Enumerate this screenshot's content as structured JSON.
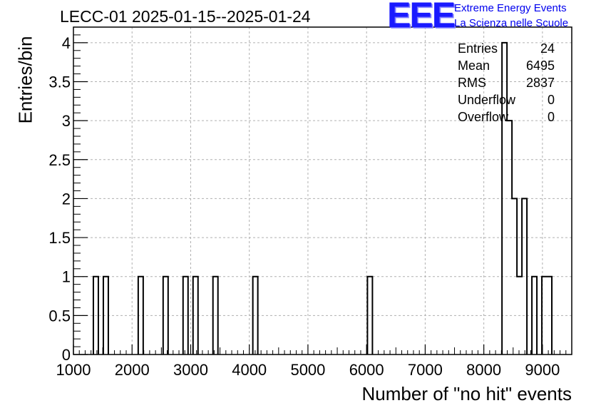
{
  "header": {
    "title": "LECC-01 2025-01-15--2025-01-24",
    "logo_text": "EEE",
    "logo_line1": "Extreme Energy Events",
    "logo_line2": "La Scienza nelle Scuole",
    "logo_color": "#1a1aff"
  },
  "stats": [
    {
      "name": "Entries",
      "value": "24"
    },
    {
      "name": "Mean",
      "value": "6495"
    },
    {
      "name": "RMS",
      "value": "2837"
    },
    {
      "name": "Underflow",
      "value": "0"
    },
    {
      "name": "Overflow",
      "value": "0"
    }
  ],
  "chart_data": {
    "type": "bar",
    "title": "LECC-01 2025-01-15--2025-01-24",
    "xlabel": "Number of \"no hit\" events",
    "ylabel": "Entries/bin",
    "xlim": [
      1000,
      9500
    ],
    "ylim": [
      0,
      4.2
    ],
    "grid": true,
    "bin_width": 85,
    "xticks": [
      "1000",
      "2000",
      "3000",
      "4000",
      "5000",
      "6000",
      "7000",
      "8000",
      "9000"
    ],
    "yticks": [
      "0",
      "0.5",
      "1",
      "1.5",
      "2",
      "2.5",
      "3",
      "3.5",
      "4"
    ],
    "bins": [
      {
        "x0": 1340,
        "x1": 1425,
        "count": 1
      },
      {
        "x0": 1510,
        "x1": 1595,
        "count": 1
      },
      {
        "x0": 2105,
        "x1": 2190,
        "count": 1
      },
      {
        "x0": 2530,
        "x1": 2615,
        "count": 1
      },
      {
        "x0": 2870,
        "x1": 2955,
        "count": 1
      },
      {
        "x0": 3040,
        "x1": 3125,
        "count": 1
      },
      {
        "x0": 3380,
        "x1": 3465,
        "count": 1
      },
      {
        "x0": 4060,
        "x1": 4145,
        "count": 1
      },
      {
        "x0": 6015,
        "x1": 6100,
        "count": 1
      },
      {
        "x0": 8310,
        "x1": 8395,
        "count": 4
      },
      {
        "x0": 8395,
        "x1": 8480,
        "count": 3
      },
      {
        "x0": 8480,
        "x1": 8565,
        "count": 2
      },
      {
        "x0": 8565,
        "x1": 8650,
        "count": 1
      },
      {
        "x0": 8650,
        "x1": 8735,
        "count": 2
      },
      {
        "x0": 8820,
        "x1": 8905,
        "count": 1
      },
      {
        "x0": 8990,
        "x1": 9075,
        "count": 1
      },
      {
        "x0": 9075,
        "x1": 9160,
        "count": 1
      }
    ],
    "line_color": "#000000",
    "grid_color": "#b0b0b0"
  }
}
